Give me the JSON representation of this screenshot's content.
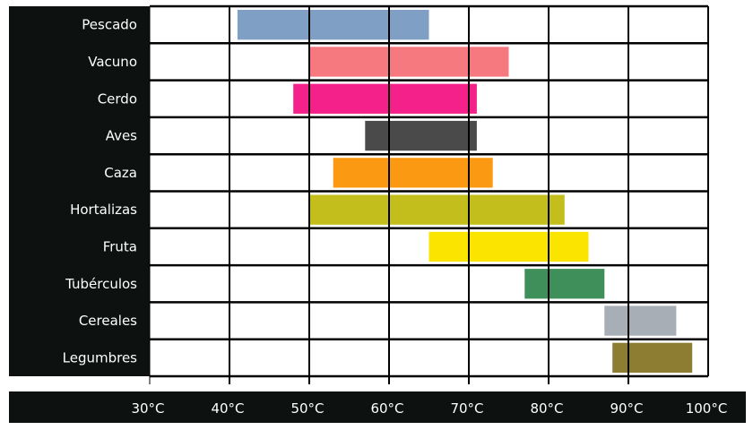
{
  "chart_data": {
    "type": "bar",
    "orientation": "horizontal-range",
    "title": "",
    "xlabel": "",
    "ylabel": "",
    "xlim": [
      30,
      100
    ],
    "x_ticks": [
      "30°C",
      "40°C",
      "50°C",
      "60°C",
      "70°C",
      "80°C",
      "90°C",
      "100°C"
    ],
    "grid": true,
    "categories": [
      "Pescado",
      "Vacuno",
      "Cerdo",
      "Aves",
      "Caza",
      "Hortalizas",
      "Fruta",
      "Tubérculos",
      "Cereales",
      "Legumbres"
    ],
    "ranges": [
      {
        "start": 41,
        "end": 65,
        "color": "#7f9fc4"
      },
      {
        "start": 50,
        "end": 75,
        "color": "#f6797f"
      },
      {
        "start": 48,
        "end": 71,
        "color": "#f5218a"
      },
      {
        "start": 57,
        "end": 71,
        "color": "#4a4a4a"
      },
      {
        "start": 53,
        "end": 73,
        "color": "#fb9a12"
      },
      {
        "start": 50,
        "end": 82,
        "color": "#c4be1c"
      },
      {
        "start": 65,
        "end": 85,
        "color": "#fbe400"
      },
      {
        "start": 77,
        "end": 87,
        "color": "#3f8f5a"
      },
      {
        "start": 87,
        "end": 96,
        "color": "#a8aeb6"
      },
      {
        "start": 88,
        "end": 98,
        "color": "#8d7d33"
      }
    ]
  }
}
